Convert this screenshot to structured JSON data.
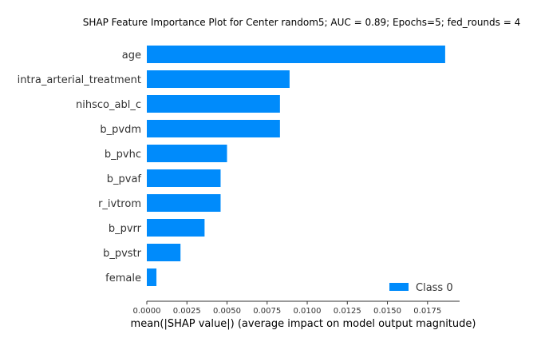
{
  "chart_data": {
    "type": "bar",
    "orientation": "horizontal",
    "title": "SHAP Feature Importance Plot for Center random5; AUC = 0.89; Epochs=5; fed_rounds = 4",
    "xlabel": "mean(|SHAP value|) (average impact on model output magnitude)",
    "ylabel": "",
    "xlim": [
      0,
      0.0195
    ],
    "xticks": [
      "0.0000",
      "0.0025",
      "0.0050",
      "0.0075",
      "0.0100",
      "0.0125",
      "0.0150",
      "0.0175"
    ],
    "categories": [
      "age",
      "intra_arterial_treatment",
      "nihsco_abl_c",
      "b_pvdm",
      "b_pvhc",
      "b_pvaf",
      "r_ivtrom",
      "b_pvrr",
      "b_pvstr",
      "female"
    ],
    "series": [
      {
        "name": "Class 0",
        "color": "#008bfb",
        "values": [
          0.0186,
          0.0089,
          0.0083,
          0.0083,
          0.005,
          0.0046,
          0.0046,
          0.0036,
          0.0021,
          0.0006
        ]
      }
    ],
    "legend_position": "bottom-right",
    "grid": false
  }
}
